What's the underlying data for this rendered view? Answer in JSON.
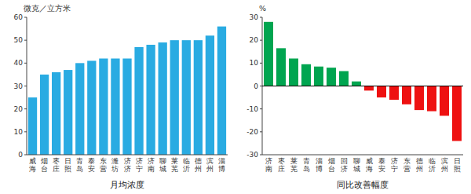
{
  "chart_data": [
    {
      "type": "bar",
      "categories": [
        "威\n海",
        "烟\n台",
        "枣\n庄",
        "日\n照",
        "青\n岛",
        "泰\n安",
        "东\n营",
        "潍\n坊",
        "济\n济",
        "济\n宁",
        "济\n南",
        "聊\n城",
        "莱\n芜",
        "临\n沂",
        "德\n州",
        "滨\n州",
        "淄\n博"
      ],
      "values": [
        25,
        35,
        36,
        37,
        40,
        41,
        42,
        42,
        42,
        47,
        48,
        49,
        50,
        50,
        50,
        52,
        56
      ],
      "color": "#29ABE2",
      "ylabel": "微克／立方米",
      "xlabel": "月均浓度",
      "ylim": [
        0,
        60
      ],
      "yticks": [
        0,
        10,
        20,
        30,
        40,
        50,
        60
      ],
      "grid": false
    },
    {
      "type": "bar",
      "categories": [
        "济\n南",
        "枣\n庄",
        "莱\n芜",
        "青\n岛",
        "淄\n博",
        "烟\n台",
        "回\n济",
        "聊\n城",
        "威\n海",
        "泰\n安",
        "济\n宁",
        "东\n营",
        "德\n州",
        "临\n沂",
        "滨\n州",
        "日\n照"
      ],
      "values": [
        28,
        16.5,
        12,
        9.5,
        8.5,
        8,
        6.5,
        2,
        -2,
        -5,
        -6,
        -8,
        -10.5,
        -11,
        -13,
        -24
      ],
      "colors": [
        "#00A550",
        "#00A550",
        "#00A550",
        "#00A550",
        "#00A550",
        "#00A550",
        "#00A550",
        "#00A550",
        "#EE1111",
        "#EE1111",
        "#EE1111",
        "#EE1111",
        "#EE1111",
        "#EE1111",
        "#EE1111",
        "#EE1111"
      ],
      "ylabel": "%",
      "xlabel": "同比改善幅度",
      "ylim": [
        -30,
        30
      ],
      "yticks": [
        -30,
        -20,
        -10,
        0,
        10,
        20,
        30
      ],
      "grid": false
    }
  ]
}
